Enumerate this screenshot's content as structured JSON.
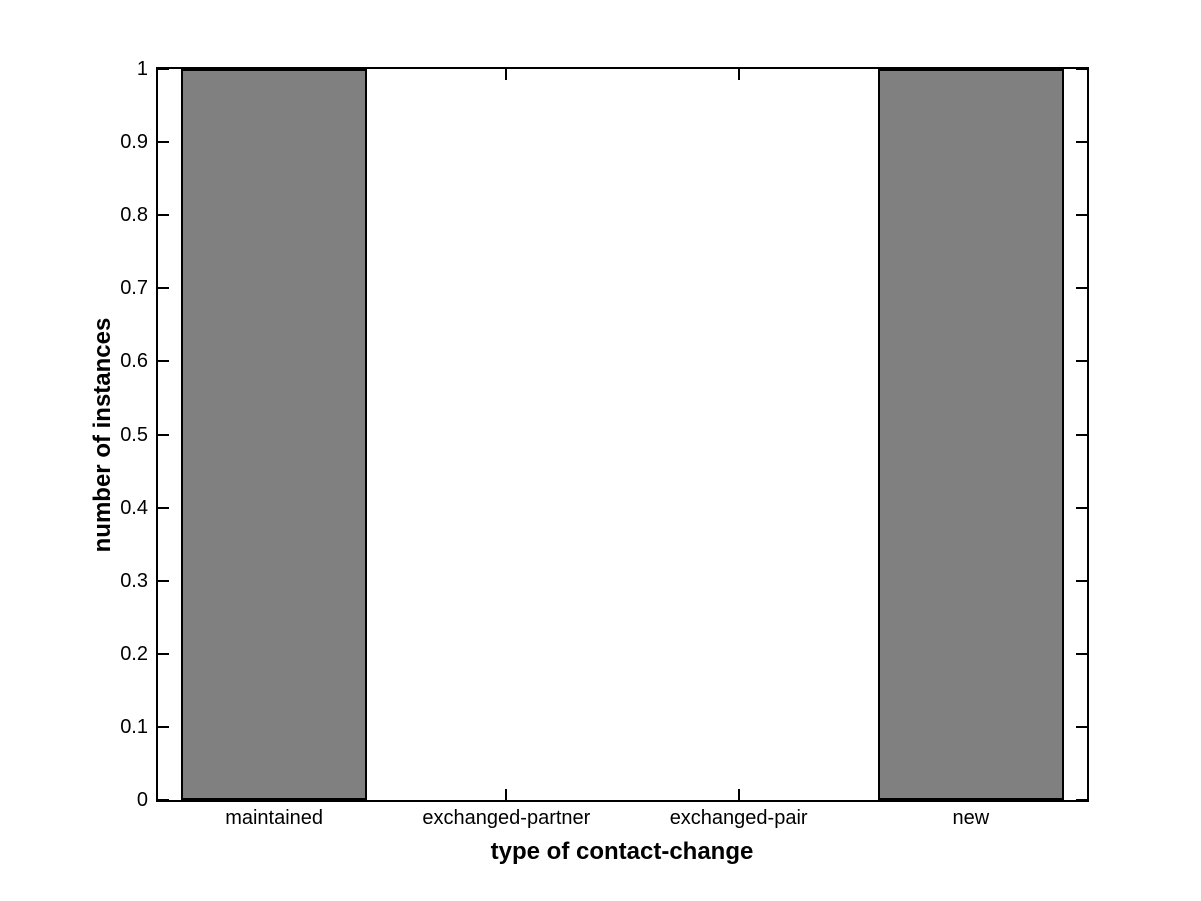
{
  "chart_data": {
    "type": "bar",
    "title": "",
    "xlabel": "type of contact-change",
    "ylabel": "number of instances",
    "categories": [
      "maintained",
      "exchanged-partner",
      "exchanged-pair",
      "new"
    ],
    "values": [
      1,
      0,
      0,
      1
    ],
    "ylim": [
      0,
      1
    ],
    "yticks": [
      0,
      0.1,
      0.2,
      0.3,
      0.4,
      0.5,
      0.6,
      0.7,
      0.8,
      0.9,
      1
    ],
    "ytick_labels": [
      "0",
      "0.1",
      "0.2",
      "0.3",
      "0.4",
      "0.5",
      "0.6",
      "0.7",
      "0.8",
      "0.9",
      "1"
    ],
    "bar_fill_color": "#808080",
    "bar_edge_color": "#000000",
    "axis_color": "#000000",
    "background_color": "#ffffff",
    "grid": false,
    "legend": null,
    "bar_width_fraction": 0.8
  }
}
